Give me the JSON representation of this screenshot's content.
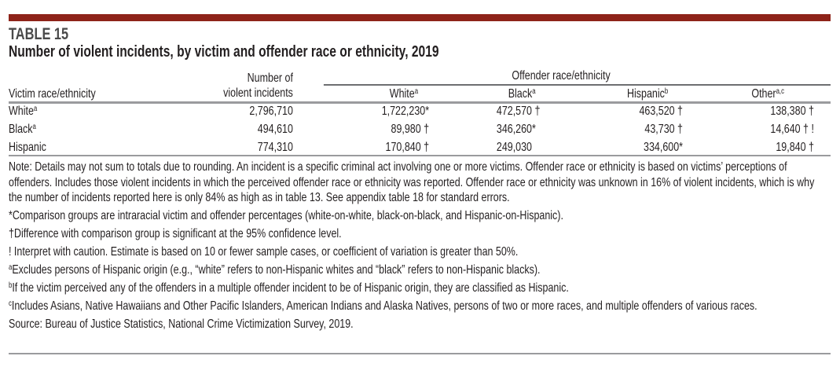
{
  "table_number": "TABLE 15",
  "title": "Number of violent incidents, by victim and offender race or ethnicity, 2019",
  "headers": {
    "victim": "Victim race/ethnicity",
    "number_line1": "Number of",
    "number_line2": "violent incidents",
    "offender_group": "Offender race/ethnicity",
    "white": "White",
    "white_sup": "a",
    "black": "Black",
    "black_sup": "a",
    "hispanic": "Hispanic",
    "hispanic_sup": "b",
    "other": "Other",
    "other_sup": "a,c"
  },
  "rows": [
    {
      "victim": "White",
      "sup": "a",
      "number": "2,796,710",
      "white": "1,722,230*",
      "black": "472,570 †",
      "hispanic": "463,520 †",
      "other": "138,380 †"
    },
    {
      "victim": "Black",
      "sup": "a",
      "number": "494,610",
      "white": "89,980 †",
      "black": "346,260*",
      "hispanic": "43,730 †",
      "other": "14,640 † !"
    },
    {
      "victim": "Hispanic",
      "sup": "",
      "number": "774,310",
      "white": "170,840 †",
      "black": "249,030",
      "hispanic": "334,600*",
      "other": "19,840 †"
    }
  ],
  "notes": {
    "note": "Note: Details may not sum to totals due to rounding. An incident is a specific criminal act involving one or more victims. Offender race or ethnicity is based on victims’ perceptions of offenders. Includes those violent incidents in which the perceived offender race or ethnicity was reported. Offender race or ethnicity was unknown in 16% of violent incidents, which is why the number of incidents reported here is only 84% as high as in table 13. See appendix table 18 for standard errors.",
    "asterisk": "*Comparison groups are intraracial victim and offender percentages (white-on-white, black-on-black, and Hispanic-on-Hispanic).",
    "dagger": "†Difference with comparison group is significant at the 95% confidence level.",
    "bang": "! Interpret with caution. Estimate is based on 10 or fewer sample cases, or coefficient of variation is greater than 50%.",
    "a_mark": "a",
    "a": "Excludes persons of Hispanic origin (e.g., “white” refers to non-Hispanic whites and “black” refers to non-Hispanic blacks).",
    "b_mark": "b",
    "b": "If the victim perceived any of the offenders in a multiple offender incident to be of Hispanic origin, they are classified as Hispanic.",
    "c_mark": "c",
    "c": "Includes Asians, Native Hawaiians and Other Pacific Islanders, American Indians and Alaska Natives, persons of two or more races, and multiple offenders of various races.",
    "source": "Source: Bureau of Justice Statistics, National Crime Victimization Survey, 2019."
  },
  "colors": {
    "accent": "#8e2319"
  }
}
